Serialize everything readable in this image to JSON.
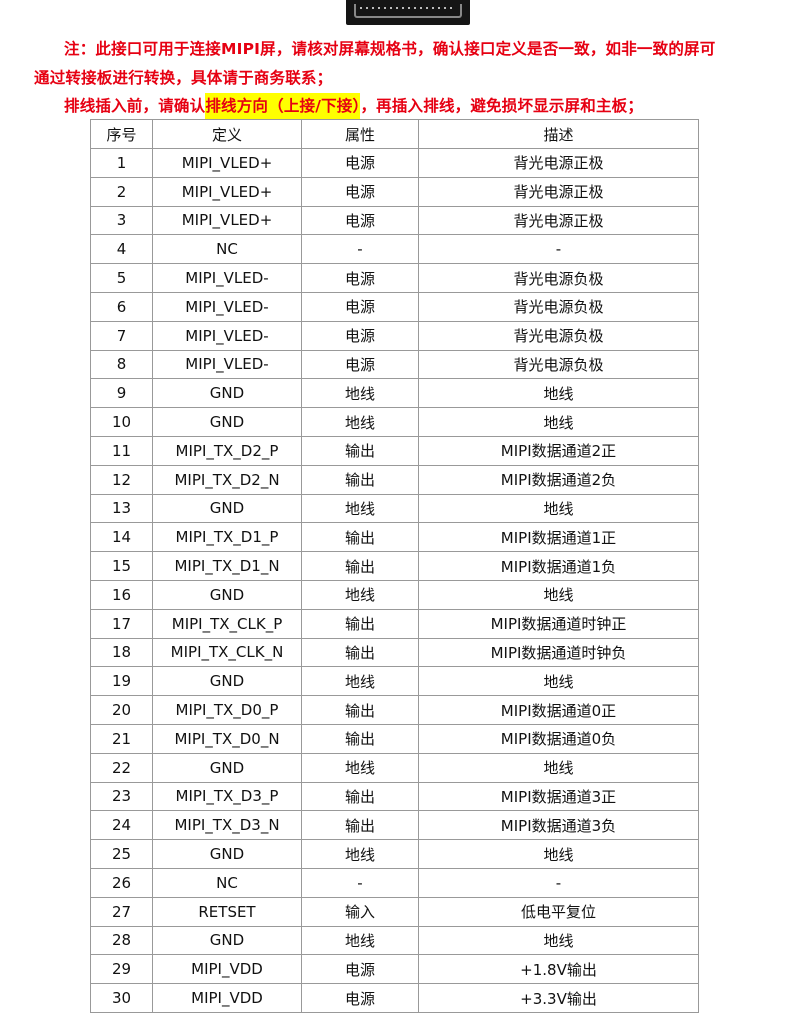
{
  "notes": {
    "line1": "注：此接口可用于连接MIPI屏，请核对屏幕规格书，确认接口定义是否一致，如非一致的屏可",
    "line2": "通过转接板进行转换，具体请于商务联系；",
    "line3_before": "排线插入前，请确认",
    "line3_highlight": "排线方向（上接/下接）",
    "line3_after": "，再插入排线，避免损坏显示屏和主板；"
  },
  "colors": {
    "note_text": "#e60012",
    "highlight": "#ffff00"
  },
  "table": {
    "headers": [
      "序号",
      "定义",
      "属性",
      "描述"
    ],
    "rows": [
      [
        "1",
        "MIPI_VLED+",
        "电源",
        "背光电源正极"
      ],
      [
        "2",
        "MIPI_VLED+",
        "电源",
        "背光电源正极"
      ],
      [
        "3",
        "MIPI_VLED+",
        "电源",
        "背光电源正极"
      ],
      [
        "4",
        "NC",
        "-",
        "-"
      ],
      [
        "5",
        "MIPI_VLED-",
        "电源",
        "背光电源负极"
      ],
      [
        "6",
        "MIPI_VLED-",
        "电源",
        "背光电源负极"
      ],
      [
        "7",
        "MIPI_VLED-",
        "电源",
        "背光电源负极"
      ],
      [
        "8",
        "MIPI_VLED-",
        "电源",
        "背光电源负极"
      ],
      [
        "9",
        "GND",
        "地线",
        "地线"
      ],
      [
        "10",
        "GND",
        "地线",
        "地线"
      ],
      [
        "11",
        "MIPI_TX_D2_P",
        "输出",
        "MIPI数据通道2正"
      ],
      [
        "12",
        "MIPI_TX_D2_N",
        "输出",
        "MIPI数据通道2负"
      ],
      [
        "13",
        "GND",
        "地线",
        "地线"
      ],
      [
        "14",
        "MIPI_TX_D1_P",
        "输出",
        "MIPI数据通道1正"
      ],
      [
        "15",
        "MIPI_TX_D1_N",
        "输出",
        "MIPI数据通道1负"
      ],
      [
        "16",
        "GND",
        "地线",
        "地线"
      ],
      [
        "17",
        "MIPI_TX_CLK_P",
        "输出",
        "MIPI数据通道时钟正"
      ],
      [
        "18",
        "MIPI_TX_CLK_N",
        "输出",
        "MIPI数据通道时钟负"
      ],
      [
        "19",
        "GND",
        "地线",
        "地线"
      ],
      [
        "20",
        "MIPI_TX_D0_P",
        "输出",
        "MIPI数据通道0正"
      ],
      [
        "21",
        "MIPI_TX_D0_N",
        "输出",
        "MIPI数据通道0负"
      ],
      [
        "22",
        "GND",
        "地线",
        "地线"
      ],
      [
        "23",
        "MIPI_TX_D3_P",
        "输出",
        "MIPI数据通道3正"
      ],
      [
        "24",
        "MIPI_TX_D3_N",
        "输出",
        "MIPI数据通道3负"
      ],
      [
        "25",
        "GND",
        "地线",
        "地线"
      ],
      [
        "26",
        "NC",
        "-",
        "-"
      ],
      [
        "27",
        "RETSET",
        "输入",
        "低电平复位"
      ],
      [
        "28",
        "GND",
        "地线",
        "地线"
      ],
      [
        "29",
        "MIPI_VDD",
        "电源",
        "+1.8V输出"
      ],
      [
        "30",
        "MIPI_VDD",
        "电源",
        "+3.3V输出"
      ]
    ]
  }
}
